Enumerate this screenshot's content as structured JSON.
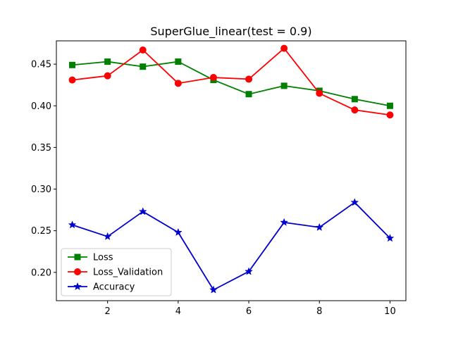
{
  "chart_data": {
    "type": "line",
    "title": "SuperGlue_linear(test = 0.9)",
    "xlabel": "",
    "ylabel": "",
    "x": [
      1,
      2,
      3,
      4,
      5,
      6,
      7,
      8,
      9,
      10
    ],
    "xlim": [
      0.55,
      10.45
    ],
    "ylim": [
      0.166,
      0.478
    ],
    "xticks": [
      2,
      4,
      6,
      8,
      10
    ],
    "yticks": [
      0.2,
      0.25,
      0.3,
      0.35,
      0.4,
      0.45
    ],
    "ytick_labels": [
      "0.20",
      "0.25",
      "0.30",
      "0.35",
      "0.40",
      "0.45"
    ],
    "grid": false,
    "legend_position": "lower-left",
    "series": [
      {
        "name": "Loss",
        "color": "#008000",
        "marker": "square",
        "values": [
          0.449,
          0.453,
          0.447,
          0.453,
          0.431,
          0.414,
          0.424,
          0.418,
          0.408,
          0.4
        ]
      },
      {
        "name": "Loss_Validation",
        "color": "#ff0000",
        "marker": "circle",
        "values": [
          0.431,
          0.436,
          0.467,
          0.427,
          0.434,
          0.432,
          0.469,
          0.415,
          0.395,
          0.389
        ]
      },
      {
        "name": "Accuracy",
        "color": "#0000cc",
        "marker": "star",
        "values": [
          0.257,
          0.243,
          0.273,
          0.248,
          0.179,
          0.201,
          0.26,
          0.254,
          0.284,
          0.241
        ]
      }
    ]
  }
}
